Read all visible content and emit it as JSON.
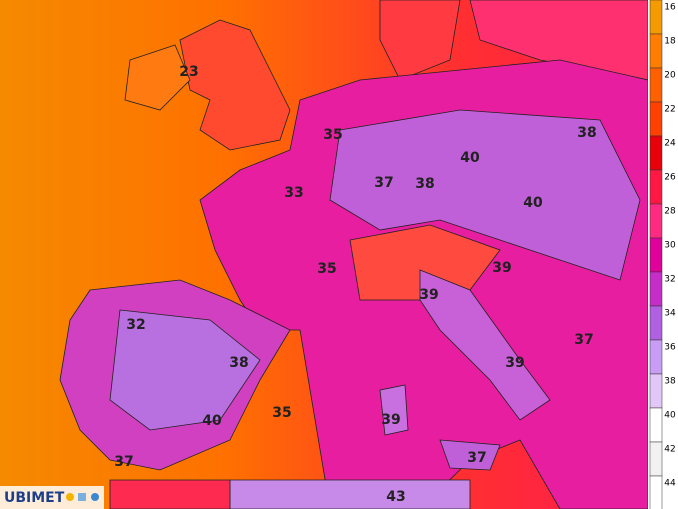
{
  "map": {
    "labels": [
      "23",
      "35",
      "38",
      "40",
      "37",
      "38",
      "33",
      "40",
      "35",
      "39",
      "39",
      "32",
      "37",
      "38",
      "39",
      "40",
      "35",
      "39",
      "37",
      "37",
      "43"
    ],
    "legend": {
      "ticks": [
        16,
        18,
        20,
        22,
        24,
        26,
        28,
        30,
        32,
        34,
        36,
        38,
        40,
        42,
        44
      ],
      "colors": [
        "#f59a00",
        "#ff7d00",
        "#ff6000",
        "#ff4000",
        "#e8000a",
        "#ff1844",
        "#ff2a82",
        "#e0009c",
        "#c62dc8",
        "#b060e0",
        "#c99cf5",
        "#e2c8f8",
        "#ffffff",
        "#f2f2f2",
        "#ffffff"
      ]
    }
  },
  "brand": "UBIMET"
}
